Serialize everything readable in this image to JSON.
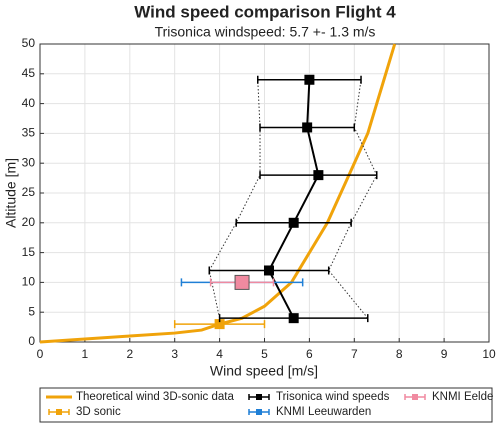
{
  "chart_data": {
    "type": "line",
    "title": "Wind speed comparison Flight 4",
    "subtitle": "Trisonica windspeed: 5.7 +- 1.3 m/s",
    "xlabel": "Wind speed [m/s]",
    "ylabel": "Altitude [m]",
    "xlim": [
      0,
      10
    ],
    "xticks": [
      0,
      1,
      2,
      3,
      4,
      5,
      6,
      7,
      8,
      9,
      10
    ],
    "ylim": [
      0,
      50
    ],
    "yticks": [
      0,
      5,
      10,
      15,
      20,
      25,
      30,
      35,
      40,
      45,
      50
    ],
    "grid": true,
    "legend": "bottom",
    "series": [
      {
        "name": "Theoretical wind 3D-sonic data",
        "color": "#f0a30a",
        "mode": "line",
        "x": [
          0,
          1,
          2,
          3,
          3.6,
          4.0,
          4.5,
          5.0,
          5.6,
          6.0,
          6.4,
          6.7,
          7.0,
          7.3,
          7.5,
          7.7,
          7.9
        ],
        "values": [
          0,
          0.5,
          1.0,
          1.5,
          2,
          3,
          4,
          6,
          10,
          15,
          20,
          25,
          30,
          35,
          40,
          45,
          50
        ]
      },
      {
        "name": "3D sonic",
        "color": "#f0a30a",
        "mode": "errorbar",
        "x": [
          4.0
        ],
        "values": [
          3
        ],
        "xerr": [
          1.0
        ]
      },
      {
        "name": "Trisonica wind speeds",
        "color": "#000000",
        "mode": "errorbar",
        "connect": true,
        "envelope": true,
        "x": [
          5.65,
          5.1,
          5.65,
          6.2,
          5.95,
          6.0
        ],
        "values": [
          4,
          12,
          20,
          28,
          36,
          44
        ],
        "xerr": [
          1.65,
          1.33,
          1.28,
          1.3,
          1.05,
          1.15
        ]
      },
      {
        "name": "KNMI Leeuwarden",
        "color": "#1f7fd6",
        "mode": "errorbar",
        "x": [
          4.5
        ],
        "values": [
          10
        ],
        "xerr": [
          1.35
        ]
      },
      {
        "name": "KNMI Eelde",
        "color": "#f08aa0",
        "mode": "errorbar",
        "big": true,
        "x": [
          4.5
        ],
        "values": [
          10
        ],
        "xerr": [
          0.7
        ]
      }
    ]
  }
}
